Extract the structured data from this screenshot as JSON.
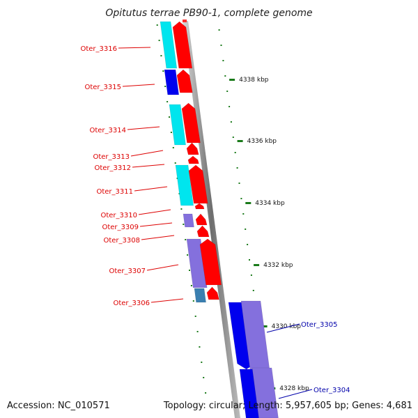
{
  "title": "Opitutus terrae PB90-1, complete genome",
  "footer": {
    "accession": "Accession: NC_010571",
    "summary": "Topology: circular; Length: 5,957,605 bp; Genes: 4,681"
  },
  "colors": {
    "forward_label": "#dd0000",
    "reverse_label": "#0000aa",
    "tick": "#1a7a1a",
    "backbone": "#8a8a8a",
    "red": "#ff0000",
    "cyan": "#00e5ee",
    "blue": "#0000ee",
    "purple": "#8470dd",
    "steel": "#3a7fb0"
  },
  "ticks": [
    {
      "label": "4338 kbp"
    },
    {
      "label": "4336 kbp"
    },
    {
      "label": "4334 kbp"
    },
    {
      "label": "4332 kbp"
    },
    {
      "label": "4330 kbp"
    },
    {
      "label": "4328 kbp"
    }
  ],
  "genes": [
    {
      "name": "Oter_3316",
      "strand": "forward"
    },
    {
      "name": "Oter_3315",
      "strand": "forward"
    },
    {
      "name": "Oter_3314",
      "strand": "forward"
    },
    {
      "name": "Oter_3313",
      "strand": "forward"
    },
    {
      "name": "Oter_3312",
      "strand": "forward"
    },
    {
      "name": "Oter_3311",
      "strand": "forward"
    },
    {
      "name": "Oter_3310",
      "strand": "forward"
    },
    {
      "name": "Oter_3309",
      "strand": "forward"
    },
    {
      "name": "Oter_3308",
      "strand": "forward"
    },
    {
      "name": "Oter_3307",
      "strand": "forward"
    },
    {
      "name": "Oter_3306",
      "strand": "forward"
    },
    {
      "name": "Oter_3305",
      "strand": "reverse"
    },
    {
      "name": "Oter_3304",
      "strand": "reverse"
    }
  ]
}
